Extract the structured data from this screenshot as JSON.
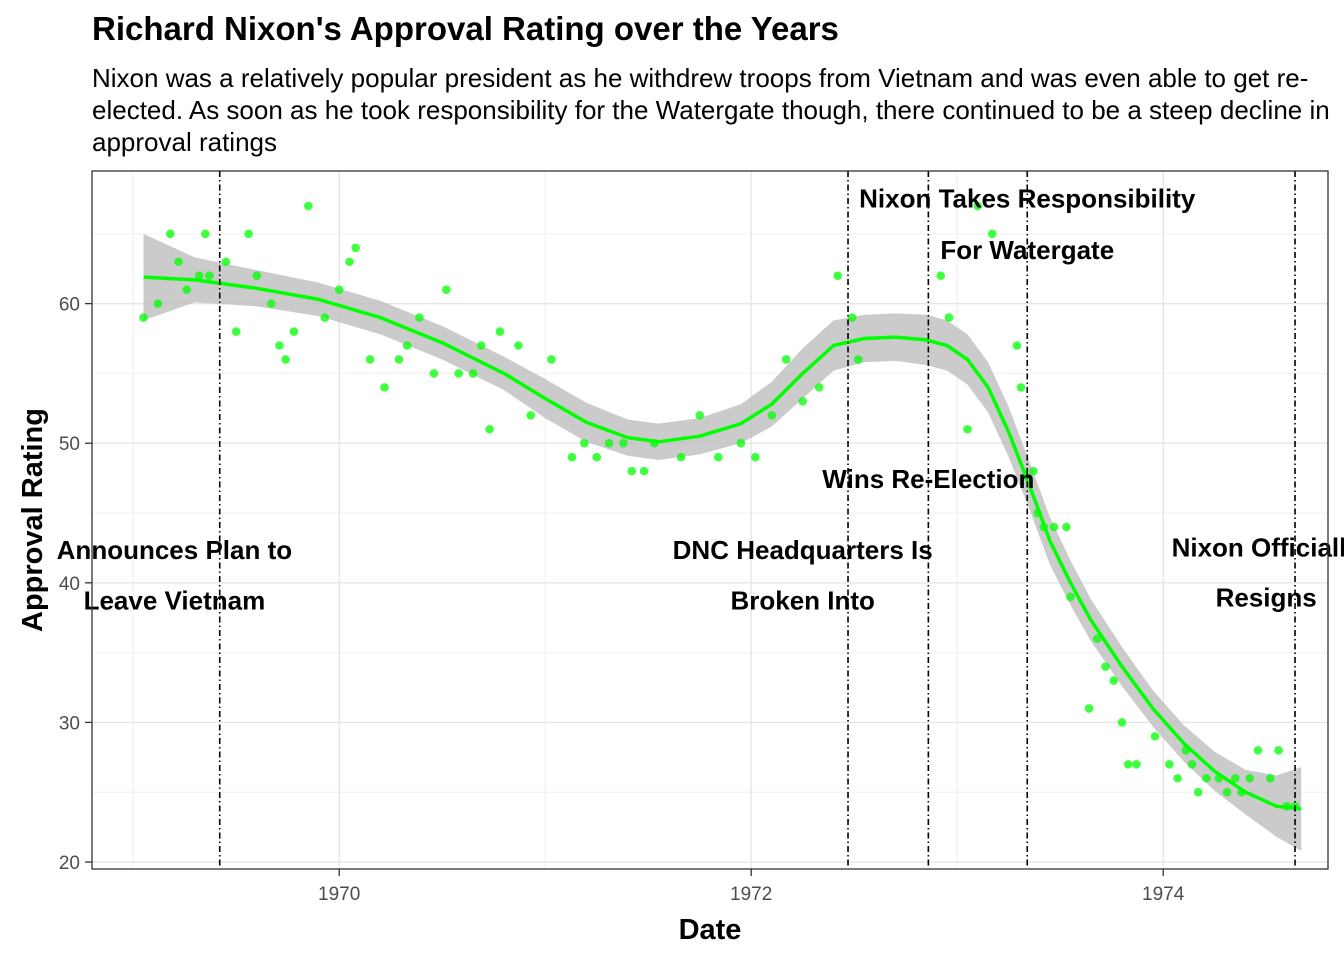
{
  "chart_data": {
    "type": "scatter",
    "title": "Richard Nixon's Approval Rating over the Years",
    "subtitle": "Nixon was a relatively popular president as he withdrew troops from Vietnam and was even able to get re-elected. As soon as he took responsibility for the Watergate though, there continued to be a steep decline in approval ratings",
    "xlabel": "Date",
    "ylabel": "Approval Rating",
    "xlim": [
      1968.8,
      1974.8
    ],
    "ylim": [
      19.5,
      69.5
    ],
    "x_ticks": [
      1970,
      1972,
      1974
    ],
    "y_ticks": [
      20,
      30,
      40,
      50,
      60
    ],
    "grid": true,
    "points_color": "#00ff00",
    "smooth_color": "#00ff00",
    "band_color": "#bebebe",
    "points": [
      [
        1969.05,
        59
      ],
      [
        1969.12,
        60
      ],
      [
        1969.18,
        65
      ],
      [
        1969.22,
        63
      ],
      [
        1969.26,
        61
      ],
      [
        1969.32,
        62
      ],
      [
        1969.35,
        65
      ],
      [
        1969.37,
        62
      ],
      [
        1969.45,
        63
      ],
      [
        1969.5,
        58
      ],
      [
        1969.56,
        65
      ],
      [
        1969.6,
        62
      ],
      [
        1969.67,
        60
      ],
      [
        1969.71,
        57
      ],
      [
        1969.74,
        56
      ],
      [
        1969.78,
        58
      ],
      [
        1969.85,
        67
      ],
      [
        1969.93,
        59
      ],
      [
        1970.0,
        61
      ],
      [
        1970.05,
        63
      ],
      [
        1970.08,
        64
      ],
      [
        1970.15,
        56
      ],
      [
        1970.22,
        54
      ],
      [
        1970.29,
        56
      ],
      [
        1970.33,
        57
      ],
      [
        1970.39,
        59
      ],
      [
        1970.46,
        55
      ],
      [
        1970.52,
        61
      ],
      [
        1970.58,
        55
      ],
      [
        1970.65,
        55
      ],
      [
        1970.69,
        57
      ],
      [
        1970.73,
        51
      ],
      [
        1970.78,
        58
      ],
      [
        1970.87,
        57
      ],
      [
        1970.93,
        52
      ],
      [
        1971.03,
        56
      ],
      [
        1971.13,
        49
      ],
      [
        1971.19,
        50
      ],
      [
        1971.25,
        49
      ],
      [
        1971.31,
        50
      ],
      [
        1971.38,
        50
      ],
      [
        1971.42,
        48
      ],
      [
        1971.48,
        48
      ],
      [
        1971.53,
        50
      ],
      [
        1971.66,
        49
      ],
      [
        1971.75,
        52
      ],
      [
        1971.84,
        49
      ],
      [
        1971.95,
        50
      ],
      [
        1972.02,
        49
      ],
      [
        1972.1,
        52
      ],
      [
        1972.17,
        56
      ],
      [
        1972.25,
        53
      ],
      [
        1972.33,
        54
      ],
      [
        1972.42,
        62
      ],
      [
        1972.49,
        59
      ],
      [
        1972.52,
        56
      ],
      [
        1972.92,
        62
      ],
      [
        1972.96,
        59
      ],
      [
        1973.05,
        51
      ],
      [
        1973.1,
        67
      ],
      [
        1973.17,
        65
      ],
      [
        1973.29,
        57
      ],
      [
        1973.31,
        54
      ],
      [
        1973.37,
        48
      ],
      [
        1973.39,
        45
      ],
      [
        1973.42,
        44
      ],
      [
        1973.47,
        44
      ],
      [
        1973.53,
        44
      ],
      [
        1973.55,
        39
      ],
      [
        1973.64,
        31
      ],
      [
        1973.68,
        36
      ],
      [
        1973.72,
        34
      ],
      [
        1973.76,
        33
      ],
      [
        1973.8,
        30
      ],
      [
        1973.83,
        27
      ],
      [
        1973.87,
        27
      ],
      [
        1973.96,
        29
      ],
      [
        1974.03,
        27
      ],
      [
        1974.07,
        26
      ],
      [
        1974.11,
        28
      ],
      [
        1974.14,
        27
      ],
      [
        1974.17,
        25
      ],
      [
        1974.21,
        26
      ],
      [
        1974.27,
        26
      ],
      [
        1974.31,
        25
      ],
      [
        1974.35,
        26
      ],
      [
        1974.38,
        25
      ],
      [
        1974.42,
        26
      ],
      [
        1974.46,
        28
      ],
      [
        1974.52,
        26
      ],
      [
        1974.56,
        28
      ],
      [
        1974.6,
        24
      ],
      [
        1974.64,
        24
      ]
    ],
    "smooth_line": [
      [
        1969.05,
        61.9
      ],
      [
        1969.3,
        61.7
      ],
      [
        1969.6,
        61.1
      ],
      [
        1969.9,
        60.3
      ],
      [
        1970.2,
        59.0
      ],
      [
        1970.5,
        57.2
      ],
      [
        1970.8,
        55.0
      ],
      [
        1971.0,
        53.2
      ],
      [
        1971.2,
        51.5
      ],
      [
        1971.4,
        50.4
      ],
      [
        1971.55,
        50.1
      ],
      [
        1971.75,
        50.5
      ],
      [
        1971.95,
        51.4
      ],
      [
        1972.1,
        52.8
      ],
      [
        1972.25,
        55.0
      ],
      [
        1972.4,
        57.0
      ],
      [
        1972.55,
        57.5
      ],
      [
        1972.7,
        57.6
      ],
      [
        1972.85,
        57.4
      ],
      [
        1972.95,
        57.0
      ],
      [
        1973.05,
        56.0
      ],
      [
        1973.15,
        54.0
      ],
      [
        1973.25,
        50.8
      ],
      [
        1973.35,
        47.0
      ],
      [
        1973.45,
        43.0
      ],
      [
        1973.55,
        40.0
      ],
      [
        1973.65,
        37.3
      ],
      [
        1973.8,
        34.0
      ],
      [
        1973.95,
        31.0
      ],
      [
        1974.1,
        28.5
      ],
      [
        1974.25,
        26.5
      ],
      [
        1974.4,
        25.0
      ],
      [
        1974.55,
        24.0
      ],
      [
        1974.67,
        23.8
      ]
    ],
    "band_upper": [
      [
        1969.05,
        65.0
      ],
      [
        1969.3,
        63.3
      ],
      [
        1969.6,
        62.4
      ],
      [
        1969.9,
        61.5
      ],
      [
        1970.2,
        60.2
      ],
      [
        1970.5,
        58.4
      ],
      [
        1970.8,
        56.2
      ],
      [
        1971.0,
        54.6
      ],
      [
        1971.2,
        52.9
      ],
      [
        1971.4,
        51.7
      ],
      [
        1971.55,
        51.4
      ],
      [
        1971.75,
        51.8
      ],
      [
        1971.95,
        52.8
      ],
      [
        1972.1,
        54.4
      ],
      [
        1972.25,
        56.8
      ],
      [
        1972.4,
        58.8
      ],
      [
        1972.55,
        59.2
      ],
      [
        1972.7,
        59.3
      ],
      [
        1972.85,
        59.2
      ],
      [
        1972.95,
        58.8
      ],
      [
        1973.05,
        57.8
      ],
      [
        1973.15,
        55.8
      ],
      [
        1973.25,
        52.6
      ],
      [
        1973.35,
        48.7
      ],
      [
        1973.45,
        44.7
      ],
      [
        1973.55,
        41.6
      ],
      [
        1973.65,
        38.8
      ],
      [
        1973.8,
        35.4
      ],
      [
        1973.95,
        32.3
      ],
      [
        1974.1,
        29.8
      ],
      [
        1974.25,
        27.9
      ],
      [
        1974.4,
        26.6
      ],
      [
        1974.55,
        26.2
      ],
      [
        1974.67,
        26.8
      ]
    ],
    "band_lower": [
      [
        1969.05,
        58.8
      ],
      [
        1969.3,
        60.1
      ],
      [
        1969.6,
        59.8
      ],
      [
        1969.9,
        59.1
      ],
      [
        1970.2,
        57.8
      ],
      [
        1970.5,
        56.0
      ],
      [
        1970.8,
        53.8
      ],
      [
        1971.0,
        51.8
      ],
      [
        1971.2,
        50.1
      ],
      [
        1971.4,
        49.1
      ],
      [
        1971.55,
        48.8
      ],
      [
        1971.75,
        49.2
      ],
      [
        1971.95,
        50.0
      ],
      [
        1972.1,
        51.2
      ],
      [
        1972.25,
        53.2
      ],
      [
        1972.4,
        55.2
      ],
      [
        1972.55,
        55.8
      ],
      [
        1972.7,
        55.9
      ],
      [
        1972.85,
        55.6
      ],
      [
        1972.95,
        55.2
      ],
      [
        1973.05,
        54.2
      ],
      [
        1973.15,
        52.2
      ],
      [
        1973.25,
        49.0
      ],
      [
        1973.35,
        45.3
      ],
      [
        1973.45,
        41.3
      ],
      [
        1973.55,
        38.4
      ],
      [
        1973.65,
        35.8
      ],
      [
        1973.8,
        32.6
      ],
      [
        1973.95,
        29.7
      ],
      [
        1974.1,
        27.2
      ],
      [
        1974.25,
        25.1
      ],
      [
        1974.4,
        23.4
      ],
      [
        1974.55,
        21.8
      ],
      [
        1974.67,
        20.8
      ]
    ],
    "events": [
      {
        "x": 1969.42,
        "lines": [
          "Announces Plan to",
          "Leave Vietnam"
        ],
        "label_x": 1969.2,
        "label_y": [
          41.7,
          38.1
        ]
      },
      {
        "x": 1972.47,
        "lines": [
          "DNC Headquarters Is",
          "Broken Into"
        ],
        "label_x": 1972.25,
        "label_y": [
          41.7,
          38.1
        ]
      },
      {
        "x": 1972.86,
        "lines": [
          "Wins Re-Election"
        ],
        "label_x": 1972.86,
        "label_y": [
          46.8
        ]
      },
      {
        "x": 1973.34,
        "lines": [
          "Nixon Takes Responsibility",
          "For Watergate"
        ],
        "label_x": 1973.34,
        "label_y": [
          66.9,
          63.2
        ]
      },
      {
        "x": 1974.64,
        "lines": [
          "Nixon Officially",
          "Resigns"
        ],
        "label_x": 1974.5,
        "label_y": [
          41.9,
          38.3
        ]
      }
    ]
  }
}
